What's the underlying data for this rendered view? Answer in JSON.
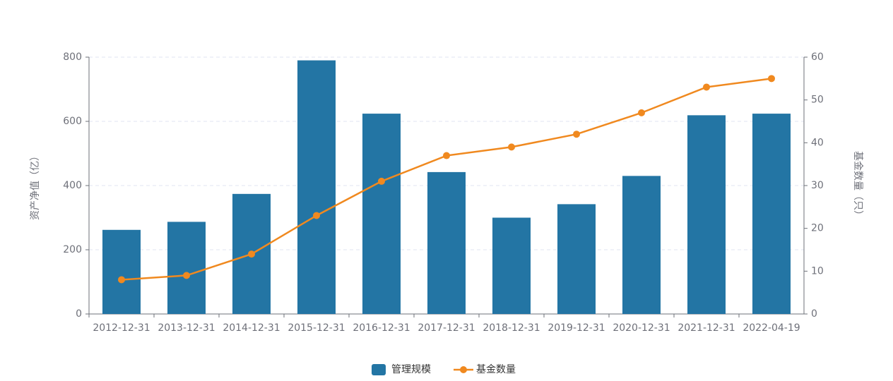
{
  "chart_data": {
    "type": "bar-line",
    "categories": [
      "2012-12-31",
      "2013-12-31",
      "2014-12-31",
      "2015-12-31",
      "2016-12-31",
      "2017-12-31",
      "2018-12-31",
      "2019-12-31",
      "2020-12-31",
      "2021-12-31",
      "2022-04-19"
    ],
    "series": [
      {
        "name": "管理规模",
        "type": "bar",
        "color": "#2375a4",
        "values": [
          262,
          287,
          374,
          790,
          624,
          442,
          300,
          342,
          430,
          619,
          624
        ]
      },
      {
        "name": "基金数量",
        "type": "line",
        "axis": "y2",
        "color": "#f0891f",
        "values": [
          8,
          9,
          14,
          23,
          31,
          37,
          39,
          42,
          47,
          53,
          55
        ]
      }
    ],
    "y_label": "资产净值（亿）",
    "y2_label": "基金数量（只）",
    "ylim": [
      0,
      800
    ],
    "yticks": [
      0,
      200,
      400,
      600,
      800
    ],
    "y2lim": [
      0,
      60
    ],
    "y2ticks": [
      0,
      10,
      20,
      30,
      40,
      50,
      60
    ],
    "grid": true,
    "legend": "bottom"
  }
}
